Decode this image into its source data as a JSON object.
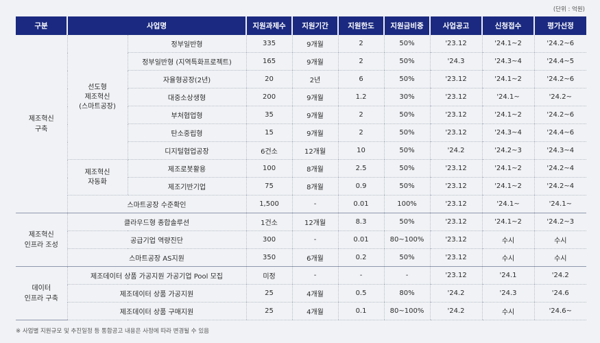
{
  "unit_label": "(단위 : 억원)",
  "headers": [
    "구분",
    "사업명",
    "지원과제수",
    "지원기간",
    "지원한도",
    "지원금비중",
    "사업공고",
    "신청접수",
    "평가선정"
  ],
  "groups": {
    "g1": "제조혁신\n구축",
    "g1_sub1": "선도형\n제조혁신\n(스마트공장)",
    "g1_sub2": "제조혁신\n자동화",
    "g2": "제조혁신\n인프라 조성",
    "g3": "데이터\n인프라 구축"
  },
  "rows": [
    [
      "정부일반형",
      "335",
      "9개월",
      "2",
      "50%",
      "'23.12",
      "'24.1~2",
      "'24.2~6"
    ],
    [
      "정부일반형 (지역특화프로젝트)",
      "165",
      "9개월",
      "2",
      "50%",
      "'24.3",
      "'24.3~4",
      "'24.4~5"
    ],
    [
      "자율형공장(2년)",
      "20",
      "2년",
      "6",
      "50%",
      "'23.12",
      "'24.1~2",
      "'24.2~6"
    ],
    [
      "대중소상생형",
      "200",
      "9개월",
      "1.2",
      "30%",
      "'23.12",
      "'24.1~",
      "'24.2~"
    ],
    [
      "부처협업형",
      "35",
      "9개월",
      "2",
      "50%",
      "'23.12",
      "'24.1~2",
      "'24.2~6"
    ],
    [
      "탄소중립형",
      "15",
      "9개월",
      "2",
      "50%",
      "'23.12",
      "'24.3~4",
      "'24.4~6"
    ],
    [
      "디지털협업공장",
      "6건소",
      "12개월",
      "10",
      "50%",
      "'24.2",
      "'24.2~3",
      "'24.3~4"
    ],
    [
      "제조로봇활용",
      "100",
      "8개월",
      "2.5",
      "50%",
      "'23.12",
      "'24.1~2",
      "'24.2~4"
    ],
    [
      "제조기반기업",
      "75",
      "8개월",
      "0.9",
      "50%",
      "'23.12",
      "'24.1~2",
      "'24.2~4"
    ],
    [
      "스마트공장 수준확인",
      "1,500",
      "-",
      "0.01",
      "100%",
      "'23.12",
      "'24.1~",
      "'24.1~"
    ],
    [
      "클라우드형 종합솔루션",
      "1건소",
      "12개월",
      "8.3",
      "50%",
      "'23.12",
      "'24.1~2",
      "'24.2~3"
    ],
    [
      "공급기업 역량진단",
      "300",
      "-",
      "0.01",
      "80~100%",
      "'23.12",
      "수시",
      "수시"
    ],
    [
      "스마트공장 AS지원",
      "350",
      "6개월",
      "0.2",
      "50%",
      "'23.12",
      "수시",
      "수시"
    ],
    [
      "제조데이터 상품 가공지원 가공기업 Pool 모집",
      "미정",
      "-",
      "-",
      "-",
      "'23.12",
      "'24.1",
      "'24.2"
    ],
    [
      "제조데이터 상품 가공지원",
      "25",
      "4개월",
      "0.5",
      "80%",
      "'24.2",
      "'24.3",
      "'24.6"
    ],
    [
      "제조데이터 상품 구매지원",
      "25",
      "4개월",
      "0.1",
      "80~100%",
      "'24.2",
      "수시",
      "'24.6~"
    ]
  ],
  "footnote": "※ 사업별 지원규모 및 추진일정 등 통합공고 내용은 사정에 따라 변경될 수 있음"
}
